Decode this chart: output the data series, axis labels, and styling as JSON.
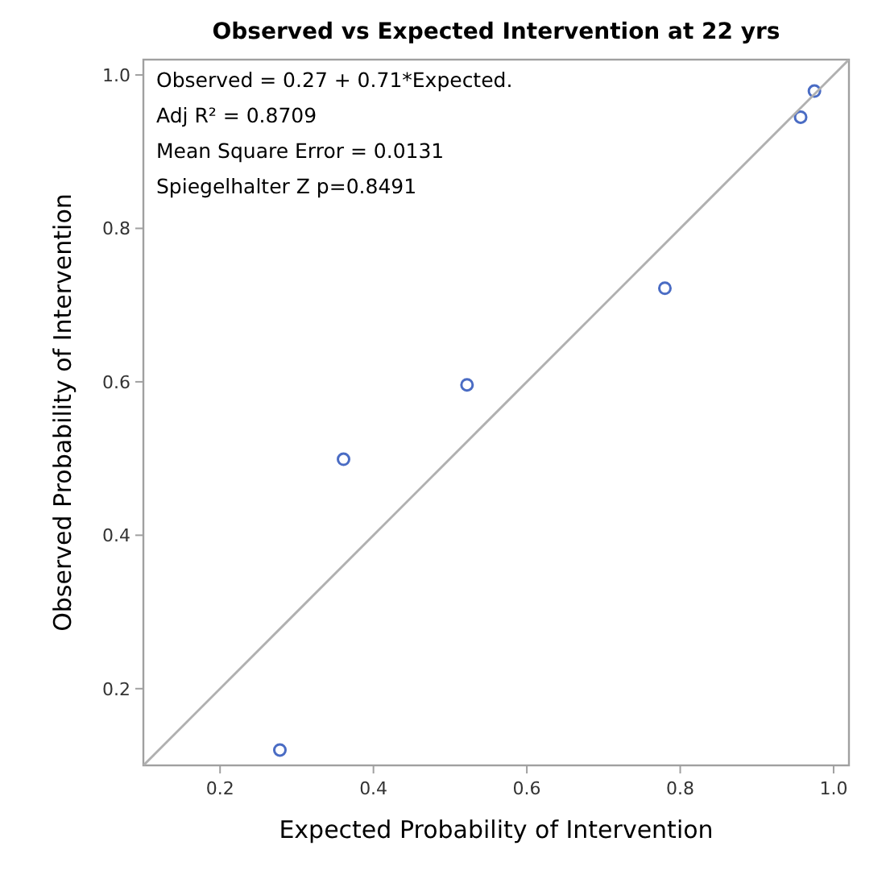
{
  "chart_data": {
    "type": "scatter",
    "title": "Observed vs Expected Intervention  at 22 yrs",
    "xlabel": "Expected Probability of Intervention",
    "ylabel": "Observed Probability of Intervention",
    "x": [
      0.278,
      0.361,
      0.522,
      0.78,
      0.957,
      0.975
    ],
    "series": [
      {
        "color": "#4a6cc4",
        "marker": "circle",
        "values": [
          0.12,
          0.499,
          0.596,
          0.722,
          0.945,
          0.979
        ]
      },
      {
        "type": "line",
        "color": "#b0b0b0",
        "marker": "none",
        "line_style": "solid",
        "x": [
          0.1,
          1.02
        ],
        "values": [
          0.1,
          1.02
        ]
      }
    ],
    "xlim": [
      0.1,
      1.02
    ],
    "ylim": [
      0.1,
      1.02
    ],
    "xticks": [
      {
        "value": 0.2,
        "label": "0.2"
      },
      {
        "value": 0.4,
        "label": "0.4"
      },
      {
        "value": 0.6,
        "label": "0.6"
      },
      {
        "value": 0.8,
        "label": "0.8"
      },
      {
        "value": 1.0,
        "label": "1.0"
      }
    ],
    "yticks": [
      {
        "value": 0.2,
        "label": "0.2"
      },
      {
        "value": 0.4,
        "label": "0.4"
      },
      {
        "value": 0.6,
        "label": "0.6"
      },
      {
        "value": 0.8,
        "label": "0.8"
      },
      {
        "value": 1.0,
        "label": "1.0"
      }
    ],
    "grid": false,
    "annotations": [
      "Observed = 0.27 + 0.71*Expected.",
      "Adj R² = 0.8709",
      "Mean Square Error = 0.0131",
      "Spiegelhalter Z p=0.8491"
    ]
  }
}
